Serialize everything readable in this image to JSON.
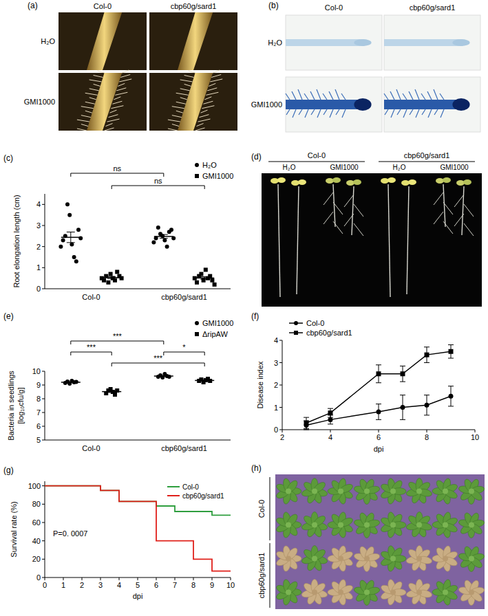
{
  "chart_data": [
    {
      "type": "dot_plot",
      "title": "(c)",
      "ylabel": "Root elongation length (cm)",
      "categories": [
        "Col-0",
        "cbp60g/sard1"
      ],
      "ylim": [
        0,
        4.5
      ],
      "yticks": [
        0,
        1,
        2,
        3,
        4
      ],
      "legend": "top-right",
      "series": [
        {
          "name": "H₂O",
          "marker": "circle",
          "values": [
            [
              2.0,
              2.3,
              2.5,
              4.0,
              3.5,
              2.1,
              1.5,
              1.3,
              2.8,
              2.4
            ],
            [
              2.2,
              2.4,
              2.9,
              2.6,
              2.5,
              2.3,
              2.0,
              2.7,
              2.8,
              2.4
            ]
          ],
          "mean": [
            2.44,
            2.48
          ],
          "error": [
            0.25,
            0.09
          ]
        },
        {
          "name": "GMI1000",
          "marker": "square",
          "values": [
            [
              0.5,
              0.4,
              0.6,
              0.3,
              0.7,
              0.5,
              0.4,
              0.8,
              0.6,
              0.5
            ],
            [
              0.5,
              0.3,
              0.6,
              0.7,
              0.4,
              0.9,
              0.5,
              0.6,
              0.4,
              0.2
            ]
          ],
          "mean": [
            0.53,
            0.51
          ],
          "error": [
            0.05,
            0.06
          ]
        }
      ],
      "annotations": [
        {
          "text": "ns",
          "between": [
            [
              "Col-0",
              "H₂O"
            ],
            [
              "cbp60g/sard1",
              "H₂O"
            ]
          ]
        },
        {
          "text": "ns",
          "between": [
            [
              "Col-0",
              "GMI1000"
            ],
            [
              "cbp60g/sard1",
              "GMI1000"
            ]
          ]
        }
      ]
    },
    {
      "type": "dot_plot",
      "title": "(e)",
      "ylabel": [
        "Bacteria in seedlings",
        "[log₁₀cfu/g]"
      ],
      "categories": [
        "Col-0",
        "cbp60g/sard1"
      ],
      "ylim": [
        5,
        10
      ],
      "yticks": [
        5,
        6,
        7,
        8,
        9,
        10
      ],
      "legend": "top-right",
      "series": [
        {
          "name": "GMI1000",
          "marker": "circle",
          "values": [
            [
              9.15,
              9.25,
              9.1,
              9.3,
              9.2,
              9.22
            ],
            [
              9.6,
              9.7,
              9.55,
              9.8,
              9.65,
              9.6
            ]
          ],
          "mean": [
            9.2,
            9.65
          ],
          "error": [
            0.03,
            0.04
          ]
        },
        {
          "name": "ΔripAW",
          "marker": "square",
          "values": [
            [
              8.4,
              8.6,
              8.7,
              8.5,
              8.3,
              8.6
            ],
            [
              9.3,
              9.4,
              9.2,
              9.35,
              9.45,
              9.3
            ]
          ],
          "mean": [
            8.52,
            9.33
          ],
          "error": [
            0.06,
            0.04
          ]
        }
      ],
      "annotations": [
        {
          "text": "***",
          "between": [
            [
              "Col-0",
              "GMI1000"
            ],
            [
              "cbp60g/sard1",
              "GMI1000"
            ]
          ]
        },
        {
          "text": "***",
          "between": [
            [
              "Col-0",
              "GMI1000"
            ],
            [
              "Col-0",
              "ΔripAW"
            ]
          ]
        },
        {
          "text": "***",
          "between": [
            [
              "Col-0",
              "ΔripAW"
            ],
            [
              "cbp60g/sard1",
              "ΔripAW"
            ]
          ]
        },
        {
          "text": "*",
          "between": [
            [
              "cbp60g/sard1",
              "GMI1000"
            ],
            [
              "cbp60g/sard1",
              "ΔripAW"
            ]
          ]
        }
      ]
    },
    {
      "type": "line",
      "title": "(f)",
      "xlabel": "dpi",
      "ylabel": "Disease index",
      "x": [
        3,
        4,
        6,
        7,
        8,
        9
      ],
      "xlim": [
        2,
        10
      ],
      "xticks": [
        2,
        4,
        6,
        8,
        10
      ],
      "ylim": [
        0,
        4
      ],
      "yticks": [
        0,
        1,
        2,
        3,
        4
      ],
      "legend": "top-left",
      "series": [
        {
          "name": "Col-0",
          "marker": "circle",
          "color": "#000000",
          "values": [
            0.2,
            0.45,
            0.8,
            1.0,
            1.1,
            1.5
          ],
          "errors": [
            0.2,
            0.2,
            0.35,
            0.55,
            0.45,
            0.45
          ]
        },
        {
          "name": "cbp60g/sard1",
          "marker": "square",
          "color": "#000000",
          "values": [
            0.3,
            0.75,
            2.5,
            2.5,
            3.35,
            3.5
          ],
          "errors": [
            0.25,
            0.2,
            0.4,
            0.35,
            0.35,
            0.3
          ]
        }
      ]
    },
    {
      "type": "step",
      "title": "(g)",
      "xlabel": "dpi",
      "ylabel": "Survival rate (%)",
      "x": [
        0,
        1,
        2,
        3,
        4,
        5,
        6,
        7,
        8,
        9,
        10
      ],
      "xlim": [
        0,
        10
      ],
      "xticks": [
        0,
        1,
        2,
        3,
        4,
        5,
        6,
        7,
        8,
        9,
        10
      ],
      "ylim": [
        0,
        105
      ],
      "yticks": [
        0,
        20,
        40,
        60,
        80,
        100
      ],
      "legend": "top-right",
      "annotations": [
        {
          "text": "P=0. 0007"
        }
      ],
      "series": [
        {
          "name": "Col-0",
          "color": "#2e9e3e",
          "values": [
            100,
            100,
            100,
            95,
            83,
            83,
            78,
            72,
            72,
            68,
            68
          ]
        },
        {
          "name": "cbp60g/sard1",
          "color": "#e0201b",
          "values": [
            100,
            100,
            100,
            95,
            83,
            83,
            40,
            40,
            20,
            7,
            7
          ]
        }
      ]
    }
  ],
  "photo_panels": [
    {
      "label": "(a)",
      "columns": [
        "Col-0",
        "cbp60g/sard1"
      ],
      "rows": [
        "H₂O",
        "GMI1000"
      ]
    },
    {
      "label": "(b)",
      "columns": [
        "Col-0",
        "cbp60g/sard1"
      ],
      "rows": [
        "H₂O",
        "GMI1000"
      ]
    },
    {
      "label": "(d)",
      "groups": [
        "Col-0",
        "cbp60g/sard1"
      ],
      "lanes": [
        "H₂O",
        "GMI1000",
        "H₂O",
        "GMI1000"
      ]
    },
    {
      "label": "(h)",
      "rows": [
        "Col-0",
        "cbp60g/sard1"
      ]
    }
  ]
}
